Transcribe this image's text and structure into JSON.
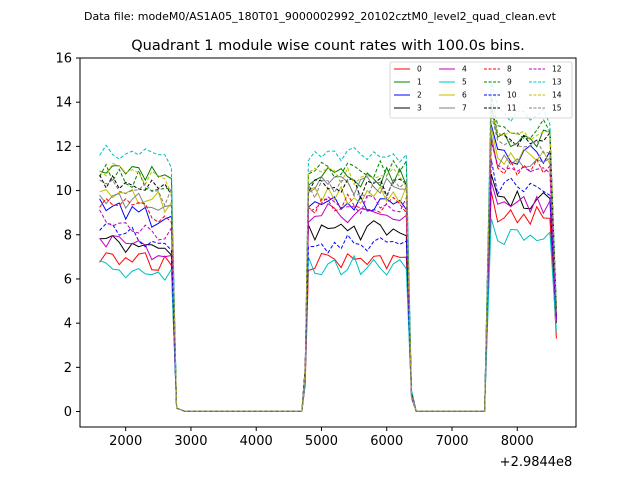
{
  "chart_data": {
    "type": "line",
    "suptitle": "Data file: modeM0/AS1A05_180T01_9000002992_20102cztM0_level2_quad_clean.evt",
    "title": "Quadrant 1 module wise count rates with 100.0s bins.",
    "xlabel": "",
    "ylabel": "",
    "x_offset_label": "+2.9844e8",
    "xlim": [
      1300,
      8900
    ],
    "ylim": [
      -0.7,
      16
    ],
    "xticks": [
      2000,
      3000,
      4000,
      5000,
      6000,
      7000,
      8000
    ],
    "xtick_labels": [
      "2000",
      "3000",
      "4000",
      "5000",
      "6000",
      "7000",
      "8000"
    ],
    "yticks": [
      0,
      2,
      4,
      6,
      8,
      10,
      12,
      14,
      16
    ],
    "ytick_labels": [
      "0",
      "2",
      "4",
      "6",
      "8",
      "10",
      "12",
      "14",
      "16"
    ],
    "legend_loc": "top-right",
    "legend_columns": 4,
    "segments": [
      {
        "x_start": 1600,
        "x_end": 2700
      },
      {
        "x_start": 4800,
        "x_end": 6300
      },
      {
        "x_start": 7600,
        "x_end": 8500
      }
    ],
    "gap_x": [
      2780,
      2900,
      3000,
      3100,
      3200,
      3300,
      3400,
      3500,
      3600,
      3700,
      3800,
      3900,
      4000,
      4100,
      4200,
      4300,
      4400,
      4500,
      4600,
      4700
    ],
    "series": [
      {
        "name": "0",
        "color": "#ff0000",
        "dash": false,
        "levels": [
          7.2,
          6.8,
          8.9
        ],
        "end_value": 3.3
      },
      {
        "name": "1",
        "color": "#008000",
        "dash": false,
        "levels": [
          11.2,
          10.6,
          12.3
        ],
        "end_value": 4.5
      },
      {
        "name": "2",
        "color": "#0000ff",
        "dash": false,
        "levels": [
          9.2,
          9.3,
          11.6
        ],
        "end_value": 4.2
      },
      {
        "name": "3",
        "color": "#000000",
        "dash": false,
        "levels": [
          7.8,
          8.2,
          9.6
        ],
        "end_value": 4.0
      },
      {
        "name": "4",
        "color": "#bf00bf",
        "dash": false,
        "levels": [
          7.7,
          9.0,
          9.3
        ],
        "end_value": 4.1
      },
      {
        "name": "5",
        "color": "#00bfbf",
        "dash": false,
        "levels": [
          6.6,
          6.6,
          7.8
        ],
        "end_value": 3.6
      },
      {
        "name": "6",
        "color": "#bfbf00",
        "dash": false,
        "levels": [
          10.0,
          9.8,
          11.5
        ],
        "end_value": 4.6
      },
      {
        "name": "7",
        "color": "#808080",
        "dash": false,
        "levels": [
          9.8,
          10.2,
          11.2
        ],
        "end_value": 4.4
      },
      {
        "name": "8",
        "color": "#ff0000",
        "dash": true,
        "levels": [
          9.5,
          9.4,
          11.0
        ],
        "end_value": 4.3
      },
      {
        "name": "9",
        "color": "#008000",
        "dash": true,
        "levels": [
          10.8,
          10.9,
          12.8
        ],
        "end_value": 4.7
      },
      {
        "name": "10",
        "color": "#0000ff",
        "dash": true,
        "levels": [
          8.2,
          7.6,
          10.2
        ],
        "end_value": 4.2
      },
      {
        "name": "11",
        "color": "#000000",
        "dash": true,
        "levels": [
          10.6,
          10.1,
          12.4
        ],
        "end_value": 4.5
      },
      {
        "name": "12",
        "color": "#bf00bf",
        "dash": true,
        "levels": [
          8.7,
          9.4,
          10.9
        ],
        "end_value": 4.3
      },
      {
        "name": "13",
        "color": "#00bfbf",
        "dash": true,
        "levels": [
          11.9,
          11.5,
          13.4
        ],
        "end_value": 4.8
      },
      {
        "name": "14",
        "color": "#bfbf00",
        "dash": true,
        "levels": [
          10.9,
          10.6,
          12.3
        ],
        "end_value": 4.6
      },
      {
        "name": "15",
        "color": "#808080",
        "dash": true,
        "levels": [
          10.3,
          10.1,
          12.0
        ],
        "end_value": 4.5
      }
    ]
  }
}
